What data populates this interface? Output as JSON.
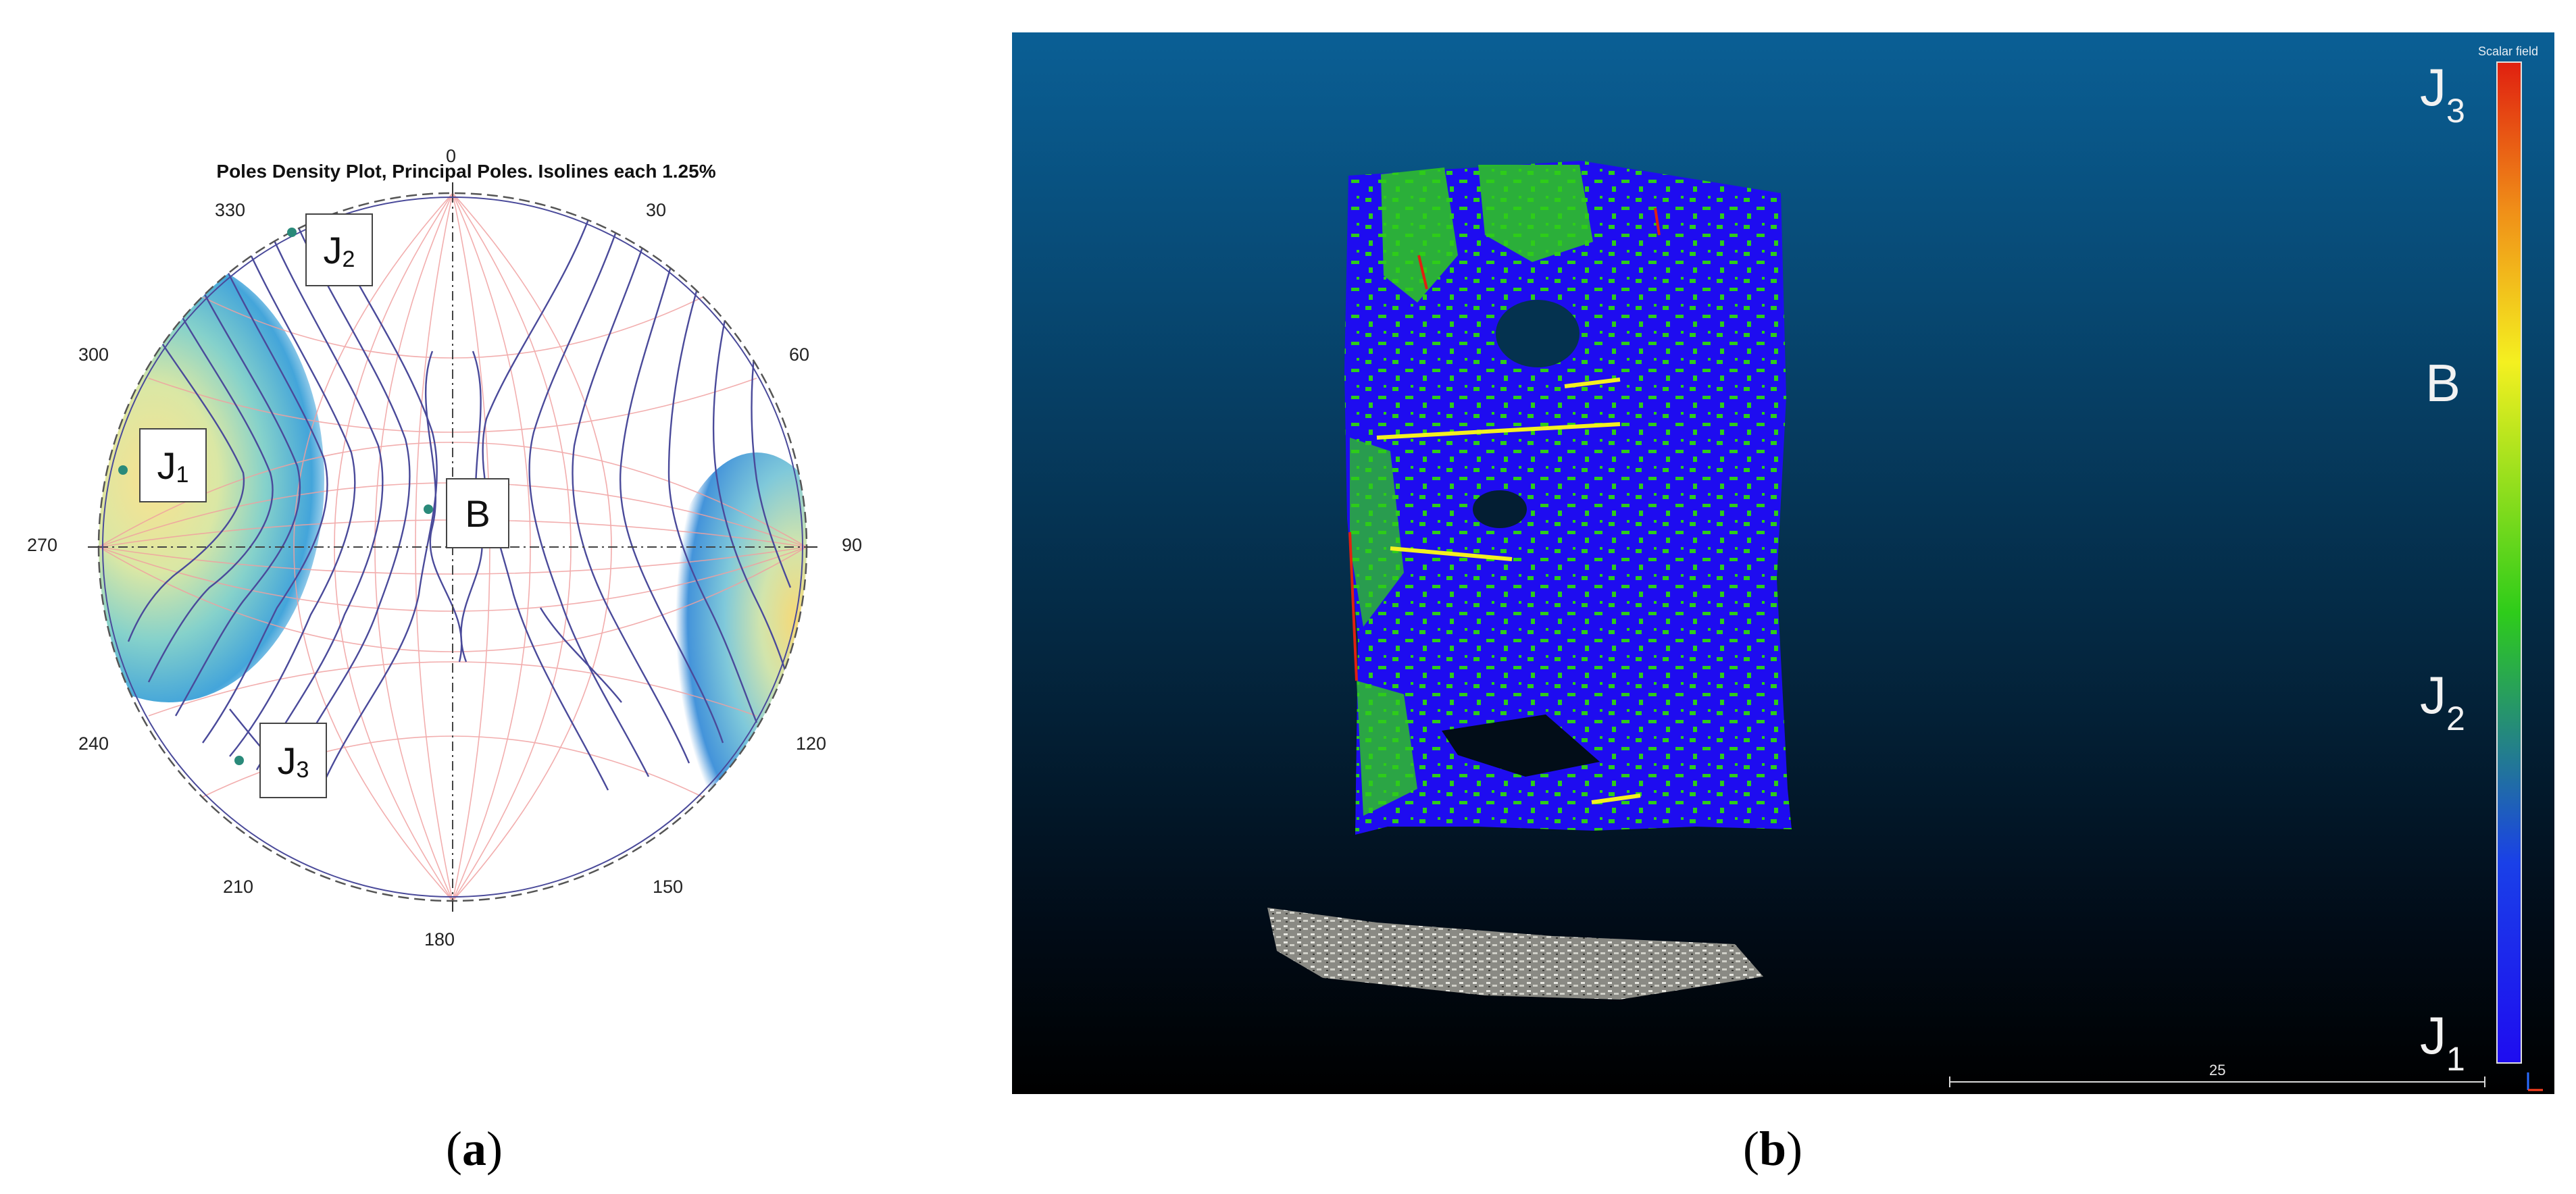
{
  "panel_a": {
    "title": "Poles Density Plot, Principal Poles. Isolines each 1.25%",
    "degrees": [
      "0",
      "30",
      "60",
      "90",
      "120",
      "150",
      "180",
      "210",
      "240",
      "270",
      "300",
      "330"
    ],
    "poles": [
      {
        "name": "J1",
        "letter": "J",
        "sub": "1"
      },
      {
        "name": "J2",
        "letter": "J",
        "sub": "2"
      },
      {
        "name": "J3",
        "letter": "J",
        "sub": "3"
      },
      {
        "name": "B",
        "letter": "B",
        "sub": ""
      }
    ],
    "colors": {
      "contour": "#4a4a9a",
      "grid": "#f0a0a0",
      "pole": "#2a8a7a"
    }
  },
  "panel_b": {
    "colorbar_title": "Scalar field",
    "colorbar_labels": [
      {
        "letter": "J",
        "sub": "3"
      },
      {
        "letter": "B",
        "sub": ""
      },
      {
        "letter": "J",
        "sub": "2"
      },
      {
        "letter": "J",
        "sub": "1"
      }
    ],
    "scale_value": "25",
    "colors": {
      "j1": "#1e0cf0",
      "j2": "#2ecc1a",
      "b": "#f4f020",
      "j3": "#e02010"
    }
  },
  "captions": {
    "a": "a",
    "b": "b"
  }
}
